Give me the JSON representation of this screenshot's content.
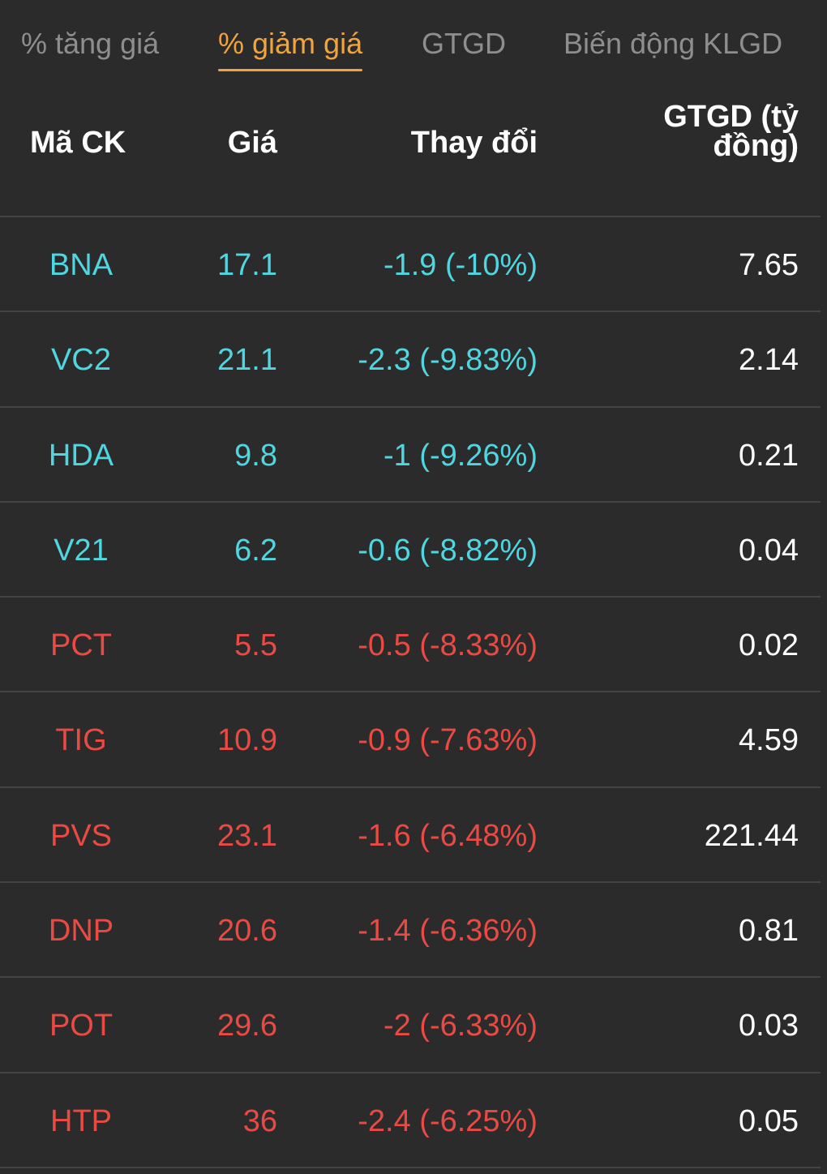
{
  "tabs": [
    {
      "label": "% tăng giá",
      "active": false
    },
    {
      "label": "% giảm giá",
      "active": true
    },
    {
      "label": "GTGD",
      "active": false
    },
    {
      "label": "Biến động KLGD",
      "active": false
    }
  ],
  "table": {
    "headers": {
      "symbol": "Mã CK",
      "price": "Giá",
      "change": "Thay đổi",
      "value_line1": "GTGD (tỷ",
      "value_line2": "đồng)"
    },
    "rows": [
      {
        "symbol": "BNA",
        "price": "17.1",
        "change": "-1.9 (-10%)",
        "value": "7.65",
        "color": "#4fd6e0"
      },
      {
        "symbol": "VC2",
        "price": "21.1",
        "change": "-2.3 (-9.83%)",
        "value": "2.14",
        "color": "#4fd6e0"
      },
      {
        "symbol": "HDA",
        "price": "9.8",
        "change": "-1 (-9.26%)",
        "value": "0.21",
        "color": "#4fd6e0"
      },
      {
        "symbol": "V21",
        "price": "6.2",
        "change": "-0.6 (-8.82%)",
        "value": "0.04",
        "color": "#4fd6e0"
      },
      {
        "symbol": "PCT",
        "price": "5.5",
        "change": "-0.5 (-8.33%)",
        "value": "0.02",
        "color": "#e94a43"
      },
      {
        "symbol": "TIG",
        "price": "10.9",
        "change": "-0.9 (-7.63%)",
        "value": "4.59",
        "color": "#e94a43"
      },
      {
        "symbol": "PVS",
        "price": "23.1",
        "change": "-1.6 (-6.48%)",
        "value": "221.44",
        "color": "#e94a43"
      },
      {
        "symbol": "DNP",
        "price": "20.6",
        "change": "-1.4 (-6.36%)",
        "value": "0.81",
        "color": "#e94a43"
      },
      {
        "symbol": "POT",
        "price": "29.6",
        "change": "-2 (-6.33%)",
        "value": "0.03",
        "color": "#e94a43"
      },
      {
        "symbol": "HTP",
        "price": "36",
        "change": "-2.4 (-6.25%)",
        "value": "0.05",
        "color": "#e94a43"
      }
    ]
  },
  "colors": {
    "background": "#2b2b2b",
    "active_tab": "#f2a33a",
    "inactive_tab": "#8e8e8e",
    "floor_price": "#4fd6e0",
    "decrease": "#e94a43",
    "value_text": "#ffffff"
  }
}
